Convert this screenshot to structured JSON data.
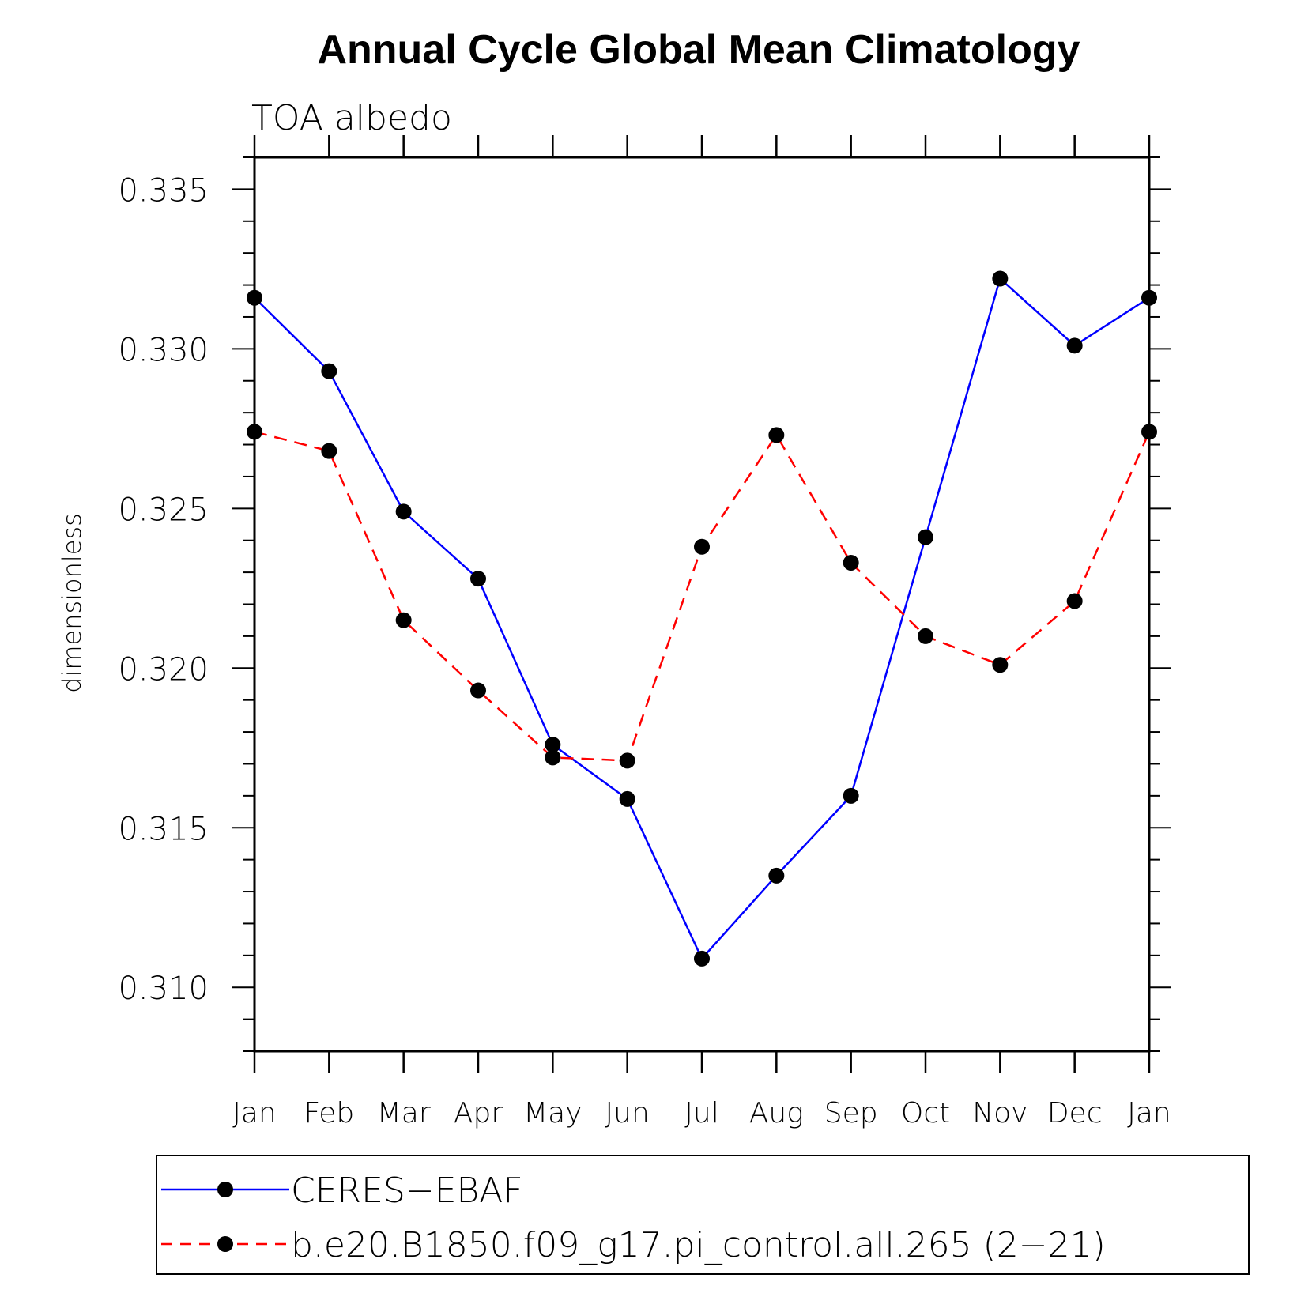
{
  "chart_data": {
    "type": "line",
    "title": "Annual Cycle Global Mean Climatology",
    "subtitle": "TOA albedo",
    "xlabel": "",
    "ylabel": "dimensionless",
    "categories": [
      "Jan",
      "Feb",
      "Mar",
      "Apr",
      "May",
      "Jun",
      "Jul",
      "Aug",
      "Sep",
      "Oct",
      "Nov",
      "Dec",
      "Jan"
    ],
    "ylim": [
      0.308,
      0.336
    ],
    "y_ticks": [
      "0.310",
      "0.315",
      "0.320",
      "0.325",
      "0.330",
      "0.335"
    ],
    "grid": false,
    "legend_position": "bottom",
    "series": [
      {
        "name": "CERES−EBAF",
        "color": "#0000ff",
        "line_style": "solid",
        "marker": "filled-circle",
        "values": [
          0.3316,
          0.3293,
          0.3249,
          0.3228,
          0.3176,
          0.3159,
          0.3109,
          0.3135,
          0.316,
          0.3241,
          0.3322,
          0.3301,
          0.3316
        ]
      },
      {
        "name": "b.e20.B1850.f09_g17.pi_control.all.265 (2−21)",
        "color": "#ff0000",
        "line_style": "dashed",
        "marker": "filled-circle",
        "values": [
          0.3274,
          0.3268,
          0.3215,
          0.3193,
          0.3172,
          0.3171,
          0.3238,
          0.3273,
          0.3233,
          0.321,
          0.3201,
          0.3221,
          0.3274
        ]
      }
    ]
  }
}
